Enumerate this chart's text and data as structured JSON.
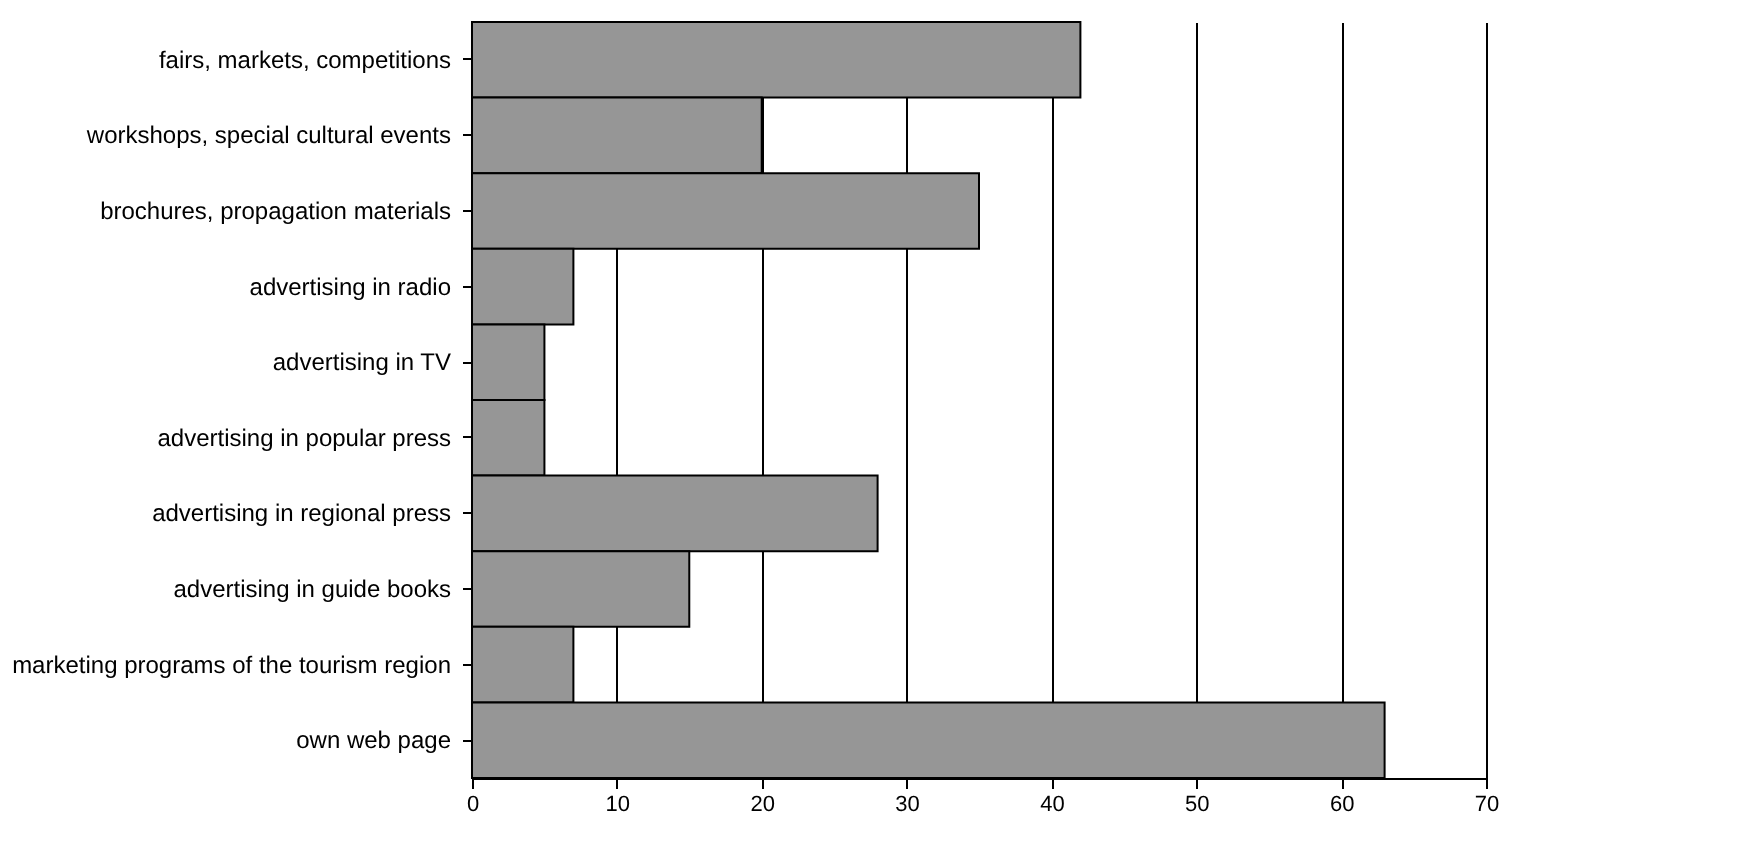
{
  "chart_data": {
    "type": "bar",
    "orientation": "horizontal",
    "categories": [
      "fairs, markets, competitions",
      "workshops, special cultural events",
      "brochures, propagation materials",
      "advertising in radio",
      "advertising in TV",
      "advertising in popular press",
      "advertising in regional press",
      "advertising in guide books",
      "marketing programs of the tourism region",
      "own web page"
    ],
    "values": [
      42,
      20,
      35,
      7,
      5,
      5,
      28,
      15,
      7,
      63
    ],
    "color": "#969696",
    "xlim": [
      0,
      70
    ],
    "xticks": [
      0,
      10,
      20,
      30,
      40,
      50,
      60,
      70
    ],
    "grid": "x"
  }
}
